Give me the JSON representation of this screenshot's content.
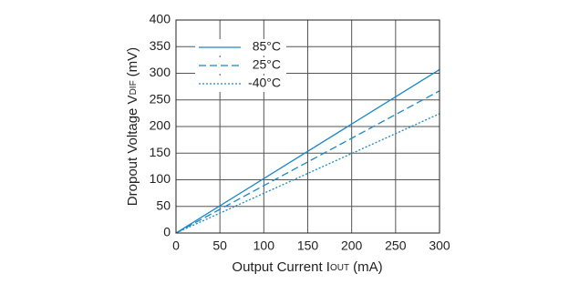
{
  "chart_data": {
    "type": "line",
    "x_label": {
      "text": "Output Current I",
      "sub": "OUT",
      "unit": "(mA)"
    },
    "y_label": {
      "text": "Dropout Voltage V",
      "sub": "DIF",
      "unit": "(mV)"
    },
    "x": [
      0,
      300
    ],
    "series": [
      {
        "name": "85°C",
        "color": "#1b87c6",
        "dash": "solid",
        "values": [
          0,
          307
        ]
      },
      {
        "name": "25°C",
        "color": "#1b87c6",
        "dash": "dashed",
        "values": [
          0,
          267
        ]
      },
      {
        "name": "-40°C",
        "color": "#1b87c6",
        "dash": "dotted",
        "values": [
          0,
          224
        ]
      }
    ],
    "xlim": [
      0,
      300
    ],
    "xticks": [
      0,
      50,
      100,
      150,
      200,
      250,
      300
    ],
    "ylim": [
      0,
      400
    ],
    "yticks": [
      0,
      50,
      100,
      150,
      200,
      250,
      300,
      350,
      400
    ],
    "grid": true,
    "legend": "top-left"
  }
}
